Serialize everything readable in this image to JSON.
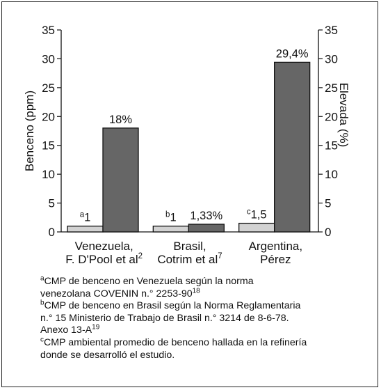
{
  "chart_data": {
    "type": "bar",
    "ylabel": "Benceno (ppm)",
    "y2label": "Elevada (%)",
    "ylim": [
      0,
      35
    ],
    "y2lim": [
      0,
      35
    ],
    "yticks": [
      "0",
      "5",
      "10",
      "15",
      "20",
      "25",
      "30",
      "35"
    ],
    "grid": false,
    "categories": [
      {
        "lines": [
          "Venezuela,",
          "F. D'Pool et al"
        ],
        "sup": "2"
      },
      {
        "lines": [
          "Brasil,",
          "Cotrim et al"
        ],
        "sup": "7"
      },
      {
        "lines": [
          "Argentina,",
          "Pérez"
        ],
        "sup": ""
      }
    ],
    "series": [
      {
        "values": [
          1,
          1,
          1.5
        ],
        "axis": "left",
        "color": "#d2d2d2"
      },
      {
        "values": [
          18,
          1.33,
          29.4
        ],
        "axis": "right",
        "color": "#666666"
      }
    ],
    "data_labels": [
      {
        "sup": "a",
        "text": "1",
        "series": 0,
        "category": 0
      },
      {
        "sup": "b",
        "text": "1",
        "series": 0,
        "category": 1
      },
      {
        "sup": "c",
        "text": "1,5",
        "series": 0,
        "category": 2
      },
      {
        "sup": "",
        "text": "18%",
        "series": 1,
        "category": 0
      },
      {
        "sup": "",
        "text": "1,33%",
        "series": 1,
        "category": 1
      },
      {
        "sup": "",
        "text": "29,4%",
        "series": 1,
        "category": 2
      }
    ]
  },
  "footnotes": [
    {
      "marker": "a",
      "lines": [
        "CMP de benceno en Venezuela según la norma",
        "venezolana COVENIN n.° 2253-90"
      ],
      "ref": "18"
    },
    {
      "marker": "b",
      "lines": [
        "CMP de benceno en Brasil según la Norma Reglamentaria",
        "n.° 15 Ministerio de Trabajo de Brasil n.° 3214 de 8-6-78.",
        "Anexo 13-A"
      ],
      "ref": "19"
    },
    {
      "marker": "c",
      "lines": [
        "CMP ambiental promedio de benceno hallada en la refinería",
        "donde se desarrolló el estudio."
      ],
      "ref": ""
    }
  ]
}
